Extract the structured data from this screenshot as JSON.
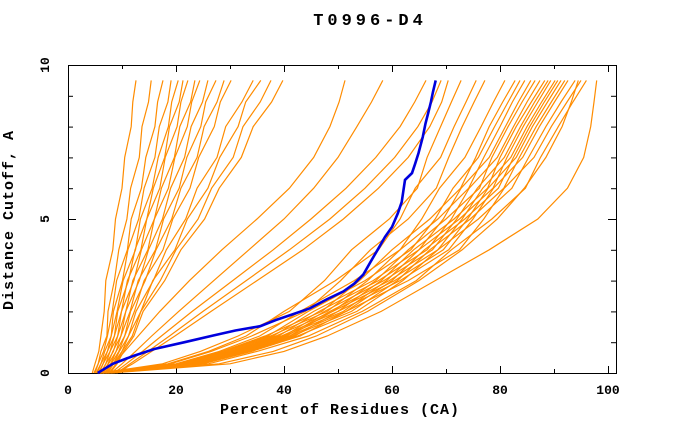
{
  "chart_data": {
    "type": "line",
    "title": "T0996-D4",
    "xlabel": "Percent of Residues (CA)",
    "ylabel": "Distance Cutoff, A",
    "xlim": [
      0,
      100
    ],
    "ylim": [
      0,
      10
    ],
    "grid": false,
    "legend": "none",
    "x_major_ticks": [
      0,
      20,
      40,
      60,
      80,
      100
    ],
    "x_minor_ticks": [
      10,
      30,
      50,
      70,
      90
    ],
    "y_major_ticks": [
      0,
      5,
      10
    ],
    "y_minor_ticks": [
      1,
      2,
      3,
      4,
      6,
      7,
      8,
      9
    ],
    "colors": {
      "model_line": "#ff8c00",
      "highlight_line": "#0000dd",
      "axis": "#000000",
      "background": "#ffffff"
    },
    "cutoffs": [
      0,
      0.3,
      0.7,
      1.2,
      2,
      3,
      4,
      5,
      6,
      7,
      8,
      8.8,
      9.5
    ],
    "orange_series_xs": [
      [
        4.5,
        5.0,
        5.7,
        6.1,
        6.7,
        7.0,
        8.3,
        8.8,
        10.0,
        10.5,
        11.7,
        12.0,
        12.6
      ],
      [
        4.8,
        5.6,
        6.1,
        7.2,
        7.4,
        8.6,
        9.4,
        10.9,
        11.6,
        13.2,
        13.7,
        14.9,
        15.4
      ],
      [
        5.0,
        5.6,
        6.6,
        7.3,
        8.2,
        9.0,
        11.0,
        11.7,
        13.6,
        14.4,
        16.1,
        16.6,
        17.6
      ],
      [
        5.2,
        6.1,
        6.8,
        8.0,
        8.4,
        10.1,
        11.1,
        13.1,
        14.1,
        16.1,
        16.9,
        18.5,
        19.1
      ],
      [
        5.4,
        6.1,
        7.3,
        8.0,
        9.1,
        10.2,
        12.5,
        13.4,
        15.6,
        16.7,
        18.6,
        19.2,
        20.4
      ],
      [
        5.6,
        6.5,
        7.3,
        8.6,
        9.2,
        11.2,
        12.4,
        14.6,
        15.8,
        17.9,
        18.8,
        20.6,
        21.3
      ],
      [
        5.8,
        6.5,
        7.8,
        8.6,
        9.9,
        11.0,
        13.5,
        14.6,
        17.0,
        18.0,
        20.2,
        20.9,
        22.2
      ],
      [
        6.0,
        7.0,
        7.8,
        9.2,
        9.9,
        12.2,
        13.6,
        16.0,
        17.3,
        19.7,
        20.7,
        22.7,
        23.5
      ],
      [
        6.2,
        7.0,
        8.4,
        9.2,
        10.7,
        12.0,
        14.8,
        16.0,
        18.6,
        19.8,
        22.1,
        22.9,
        24.4
      ],
      [
        6.4,
        7.4,
        8.3,
        9.8,
        10.7,
        13.2,
        14.9,
        17.5,
        19.0,
        21.6,
        22.8,
        24.9,
        25.9
      ],
      [
        6.6,
        7.5,
        8.9,
        9.8,
        11.5,
        13.0,
        16.2,
        17.7,
        20.6,
        22.0,
        24.6,
        25.5,
        27.4
      ],
      [
        6.8,
        7.9,
        8.9,
        10.5,
        11.6,
        14.3,
        16.3,
        19.2,
        20.9,
        23.9,
        25.2,
        27.6,
        28.9
      ],
      [
        7.0,
        8.0,
        9.4,
        10.5,
        12.3,
        14.1,
        17.6,
        19.4,
        22.6,
        24.2,
        27.1,
        28.2,
        30.2
      ],
      [
        7.2,
        8.4,
        9.5,
        11.2,
        12.6,
        15.8,
        18.2,
        21.8,
        23.9,
        27.6,
        29.2,
        32.2,
        34.3
      ],
      [
        7.4,
        8.4,
        10.0,
        11.2,
        13.5,
        15.7,
        19.8,
        22.1,
        25.9,
        28.1,
        31.5,
        32.9,
        35.7
      ],
      [
        7.6,
        8.9,
        10.0,
        11.9,
        13.5,
        17.1,
        20.0,
        24.1,
        26.6,
        30.6,
        32.4,
        35.6,
        37.6
      ],
      [
        7.8,
        9.1,
        10.3,
        12.2,
        13.9,
        17.9,
        20.9,
        25.3,
        28.0,
        32.1,
        34.3,
        37.7,
        39.8
      ],
      [
        7.0,
        8.5,
        10.5,
        13.0,
        17.0,
        22.5,
        28.5,
        35.0,
        41.0,
        45.5,
        48.5,
        50.2,
        51.3
      ],
      [
        8.0,
        10.0,
        12.5,
        15.5,
        20.5,
        27.0,
        33.5,
        40.0,
        45.5,
        50.0,
        53.5,
        56.2,
        58.3
      ],
      [
        8.5,
        10.8,
        13.8,
        17.3,
        23.0,
        30.5,
        38.0,
        45.0,
        51.5,
        57.0,
        61.5,
        64.2,
        66.3
      ],
      [
        9.0,
        11.5,
        14.8,
        18.8,
        25.0,
        33.0,
        41.0,
        48.5,
        55.0,
        60.5,
        64.8,
        67.4,
        69.1
      ],
      [
        9.0,
        12.0,
        15.5,
        19.8,
        26.5,
        35.0,
        43.5,
        51.0,
        57.5,
        63.0,
        67.0,
        69.2,
        70.4
      ],
      [
        6.0,
        17.5,
        24.5,
        31.5,
        41.0,
        47.5,
        52.5,
        59.5,
        64.7,
        66.5,
        69.0,
        71.0,
        72.8
      ],
      [
        6.5,
        18.5,
        26.0,
        33.0,
        40.0,
        49.5,
        57.5,
        61.5,
        64.3,
        69.0,
        71.5,
        73.7,
        75.6
      ],
      [
        5.5,
        19.0,
        26.5,
        34.0,
        44.0,
        50.5,
        56.0,
        63.0,
        68.2,
        70.5,
        73.0,
        75.2,
        77.2
      ],
      [
        6.0,
        20.0,
        28.0,
        35.5,
        43.0,
        53.0,
        61.5,
        65.5,
        68.8,
        73.5,
        76.5,
        78.8,
        80.9
      ],
      [
        6.5,
        20.5,
        28.5,
        36.5,
        47.0,
        54.0,
        60.0,
        67.0,
        72.7,
        75.5,
        78.0,
        80.5,
        82.8
      ],
      [
        7.0,
        21.0,
        29.0,
        37.0,
        44.5,
        55.0,
        63.5,
        68.0,
        71.3,
        76.0,
        79.0,
        81.5,
        83.7
      ],
      [
        5.8,
        21.0,
        29.5,
        37.5,
        48.0,
        55.5,
        61.5,
        68.5,
        74.2,
        77.0,
        80.0,
        82.3,
        84.6
      ],
      [
        6.2,
        21.5,
        30.0,
        38.0,
        45.5,
        56.5,
        65.0,
        69.5,
        72.8,
        78.0,
        81.0,
        83.4,
        85.7
      ],
      [
        6.8,
        21.5,
        30.5,
        38.5,
        49.0,
        57.0,
        63.0,
        70.0,
        76.2,
        78.5,
        81.5,
        84.1,
        86.5
      ],
      [
        7.4,
        22.0,
        30.5,
        39.0,
        46.5,
        57.5,
        66.5,
        71.0,
        74.3,
        79.5,
        82.5,
        85.0,
        87.4
      ],
      [
        5.5,
        22.5,
        31.0,
        39.5,
        50.0,
        58.0,
        64.0,
        71.5,
        77.7,
        80.0,
        83.0,
        85.8,
        88.3
      ],
      [
        6.0,
        22.5,
        31.0,
        40.0,
        47.5,
        58.5,
        67.5,
        72.0,
        75.8,
        80.8,
        83.8,
        86.4,
        88.9
      ],
      [
        6.5,
        23.0,
        31.5,
        40.0,
        51.0,
        59.0,
        65.0,
        72.5,
        78.7,
        81.3,
        84.3,
        87.0,
        89.4
      ],
      [
        7.0,
        23.0,
        32.0,
        40.5,
        48.5,
        59.5,
        68.5,
        73.0,
        76.8,
        82.0,
        85.0,
        87.7,
        90.2
      ],
      [
        5.8,
        23.5,
        32.0,
        41.0,
        51.5,
        60.0,
        66.0,
        73.5,
        79.7,
        82.5,
        85.5,
        88.2,
        90.7
      ],
      [
        6.4,
        23.5,
        32.5,
        41.0,
        49.0,
        60.5,
        69.5,
        74.0,
        77.8,
        83.0,
        86.0,
        88.8,
        91.3
      ],
      [
        7.0,
        24.0,
        33.0,
        41.5,
        52.5,
        61.0,
        67.0,
        74.5,
        80.7,
        83.6,
        86.7,
        89.5,
        92.0
      ],
      [
        6.0,
        24.0,
        33.0,
        42.0,
        50.0,
        61.5,
        70.5,
        75.0,
        78.8,
        84.2,
        87.3,
        90.1,
        92.6
      ],
      [
        6.6,
        24.5,
        33.5,
        42.5,
        53.5,
        62.0,
        68.5,
        76.0,
        82.2,
        85.3,
        88.5,
        91.3,
        93.9
      ],
      [
        7.2,
        25.0,
        34.0,
        43.0,
        51.5,
        63.0,
        72.5,
        77.0,
        80.8,
        86.3,
        89.5,
        92.4,
        95.0
      ],
      [
        6.2,
        26.0,
        35.0,
        44.5,
        54.5,
        64.5,
        71.0,
        78.5,
        84.7,
        87.5,
        90.8,
        93.5,
        96.0
      ],
      [
        8.0,
        30.0,
        40.0,
        48.0,
        58.0,
        68.0,
        78.0,
        87.0,
        92.5,
        95.5,
        96.8,
        97.4,
        97.9
      ],
      [
        7.5,
        28.0,
        38.0,
        46.0,
        55.5,
        65.0,
        73.0,
        79.5,
        84.5,
        88.5,
        91.5,
        93.2,
        94.5
      ]
    ],
    "highlight_series": {
      "points": [
        [
          5.5,
          0
        ],
        [
          8.3,
          0.3
        ],
        [
          12,
          0.55
        ],
        [
          16,
          0.78
        ],
        [
          21.6,
          1.0
        ],
        [
          27,
          1.22
        ],
        [
          31,
          1.38
        ],
        [
          35.6,
          1.52
        ],
        [
          38.5,
          1.72
        ],
        [
          41.5,
          1.9
        ],
        [
          44.8,
          2.1
        ],
        [
          48,
          2.4
        ],
        [
          51,
          2.65
        ],
        [
          53,
          2.9
        ],
        [
          54.7,
          3.2
        ],
        [
          56,
          3.6
        ],
        [
          57.5,
          4.05
        ],
        [
          58.7,
          4.42
        ],
        [
          60,
          4.74
        ],
        [
          61.1,
          5.19
        ],
        [
          61.8,
          5.55
        ],
        [
          62.1,
          5.9
        ],
        [
          62.4,
          6.27
        ],
        [
          63.7,
          6.49
        ],
        [
          64.3,
          6.8
        ],
        [
          64.9,
          7.14
        ],
        [
          65.7,
          7.67
        ],
        [
          66.2,
          8.1
        ],
        [
          66.7,
          8.44
        ],
        [
          67.2,
          8.8
        ],
        [
          67.6,
          9.13
        ],
        [
          68.1,
          9.5
        ]
      ]
    }
  }
}
